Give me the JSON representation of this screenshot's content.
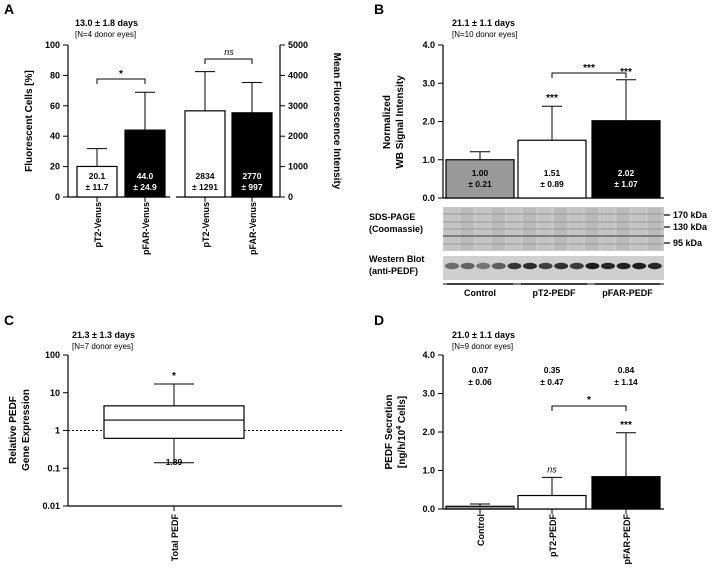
{
  "panels": {
    "A": {
      "letter": "A",
      "header": "13.0 ± 1.8 days",
      "sub": "[N=4 donor eyes]",
      "left": {
        "ylabel": "Fluorescent Cells [%]",
        "ticks": [
          "0",
          "20",
          "40",
          "60",
          "80",
          "100"
        ]
      },
      "right": {
        "ylabel": "Mean Fluorescence Intensity",
        "ticks": [
          "0",
          "1000",
          "2000",
          "3000",
          "4000",
          "5000"
        ]
      },
      "sig_left": "*",
      "sig_right": "ns"
    },
    "B": {
      "letter": "B",
      "header": "21.1 ± 1.1 days",
      "sub": "[N=10 donor eyes]",
      "ylabel1": "Normalized",
      "ylabel2": "WB Signal Intensity",
      "ticks": [
        "0.0",
        "1.0",
        "2.0",
        "3.0",
        "4.0"
      ],
      "sig_bracket": "***",
      "sig_bars": [
        "",
        "***",
        "***"
      ],
      "blot": {
        "sds_label1": "SDS-PAGE",
        "sds_label2": "(Coomassie)",
        "wb_label1": "Western Blot",
        "wb_label2": "(anti-PEDF)",
        "markers": [
          "170 kDa",
          "130 kDa",
          "95 kDa"
        ],
        "groups": [
          "Control",
          "pT2-PEDF",
          "pFAR-PEDF"
        ]
      }
    },
    "C": {
      "letter": "C",
      "header": "21.3 ± 1.3 days",
      "sub": "[N=7 donor eyes]",
      "ylabel1": "Relative PEDF",
      "ylabel2": "Gene Expression",
      "ticks": [
        "0.01",
        "0.1",
        "1",
        "10",
        "100"
      ],
      "sig": "*",
      "value_label": "1.89",
      "category": "Total PEDF"
    },
    "D": {
      "letter": "D",
      "header": "21.0 ± 1.1 days",
      "sub": "[N=9 donor eyes]",
      "ylabel1": "PEDF Secretion",
      "ylabel2_main": "[ng/h/10",
      "ylabel2_sup": "4",
      "ylabel2_end": " Cells]",
      "ticks": [
        "0.0",
        "1.0",
        "2.0",
        "3.0",
        "4.0"
      ],
      "sig_bars": [
        "",
        "ns",
        "***"
      ],
      "sig_bracket": "*"
    }
  },
  "chart_data": [
    {
      "type": "bar",
      "panel": "A-left",
      "title": "13.0 ± 1.8 days [N=4 donor eyes]",
      "ylabel": "Fluorescent Cells [%]",
      "ylim": [
        0,
        100
      ],
      "categories": [
        "pT2-Venus",
        "pFAR-Venus"
      ],
      "values": [
        20.1,
        44.0
      ],
      "errors": [
        11.7,
        24.9
      ],
      "labels": [
        [
          "20.1",
          "± 11.7"
        ],
        [
          "44.0",
          "± 24.9"
        ]
      ],
      "fills": [
        "#ffffff",
        "#000000"
      ]
    },
    {
      "type": "bar",
      "panel": "A-right",
      "ylabel": "Mean Fluorescence Intensity",
      "ylim": [
        0,
        5000
      ],
      "categories": [
        "pT2-Venus",
        "pFAR-Venus"
      ],
      "values": [
        2834,
        2770
      ],
      "errors": [
        1291,
        997
      ],
      "labels": [
        [
          "2834",
          "± 1291"
        ],
        [
          "2770",
          "± 997"
        ]
      ],
      "fills": [
        "#ffffff",
        "#000000"
      ]
    },
    {
      "type": "bar",
      "panel": "B",
      "title": "21.1 ± 1.1 days [N=10 donor eyes]",
      "ylabel": "Normalized WB Signal Intensity",
      "ylim": [
        0,
        4
      ],
      "categories": [
        "Control",
        "pT2-PEDF",
        "pFAR-PEDF"
      ],
      "values": [
        1.0,
        1.51,
        2.02
      ],
      "errors": [
        0.21,
        0.89,
        1.07
      ],
      "labels": [
        [
          "1.00",
          "± 0.21"
        ],
        [
          "1.51",
          "± 0.89"
        ],
        [
          "2.02",
          "± 1.07"
        ]
      ],
      "fills": [
        "#999999",
        "#ffffff",
        "#000000"
      ]
    },
    {
      "type": "box",
      "panel": "C",
      "title": "21.3 ± 1.3 days [N=7 donor eyes]",
      "ylabel": "Relative PEDF Gene Expression",
      "yscale": "log",
      "ylim": [
        0.01,
        100
      ],
      "categories": [
        "Total PEDF"
      ],
      "min": 0.14,
      "q1": 0.62,
      "median": 1.89,
      "q3": 4.5,
      "max": 17,
      "reference_line": 1
    },
    {
      "type": "bar",
      "panel": "D",
      "title": "21.0 ± 1.1 days [N=9 donor eyes]",
      "ylabel": "PEDF Secretion [ng/h/10^4 Cells]",
      "ylim": [
        0,
        4
      ],
      "categories": [
        "Control",
        "pT2-PEDF",
        "pFAR-PEDF"
      ],
      "values": [
        0.07,
        0.35,
        0.84
      ],
      "errors": [
        0.06,
        0.47,
        1.14
      ],
      "labels": [
        [
          "0.07",
          "± 0.06"
        ],
        [
          "0.35",
          "± 0.47"
        ],
        [
          "0.84",
          "± 1.14"
        ]
      ],
      "fills": [
        "#999999",
        "#ffffff",
        "#000000"
      ]
    }
  ]
}
